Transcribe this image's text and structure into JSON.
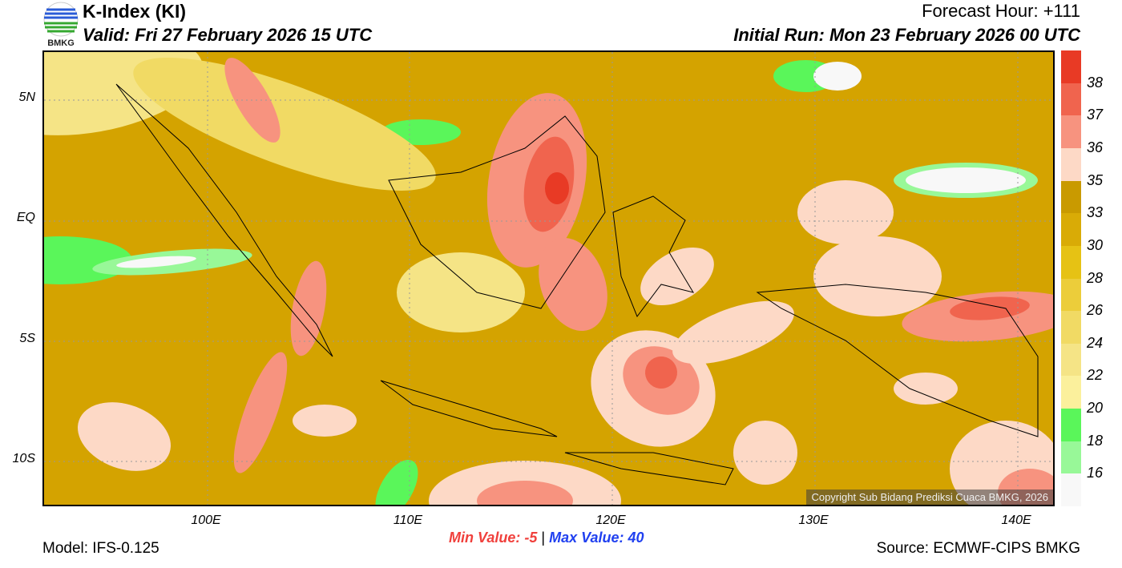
{
  "header": {
    "logo_text": "BMKG",
    "title": "K-Index (KI)",
    "valid": "Valid: Fri 27 February 2026 15 UTC",
    "forecast_hour": "Forecast Hour: +111",
    "initial_run": "Initial Run: Mon 23 February 2026 00 UTC"
  },
  "map": {
    "lat_ticks": [
      "5N",
      "EQ",
      "5S",
      "10S"
    ],
    "lon_ticks": [
      "100E",
      "110E",
      "120E",
      "130E",
      "140E"
    ],
    "copyright": "Copyright Sub Bidang Prediksi Cuaca BMKG, 2026",
    "background_color": "#d4a300"
  },
  "colorbar": {
    "labels": [
      "38",
      "37",
      "36",
      "35",
      "33",
      "30",
      "28",
      "26",
      "24",
      "22",
      "20",
      "18",
      "16"
    ],
    "colors": [
      "#e83a25",
      "#f0644e",
      "#f7937f",
      "#fdd9c6",
      "#c99a00",
      "#d9ab06",
      "#e6c214",
      "#eccd3a",
      "#f1da64",
      "#f5e486",
      "#fbf09c",
      "#5af65a",
      "#98f898",
      "#f8f8f8"
    ]
  },
  "footer": {
    "min_label": "Min Value:",
    "min_value": "-5",
    "separator": "|",
    "max_label": "Max Value:",
    "max_value": "40",
    "model": "Model: IFS-0.125",
    "source": "Source: ECMWF-CIPS BMKG"
  }
}
